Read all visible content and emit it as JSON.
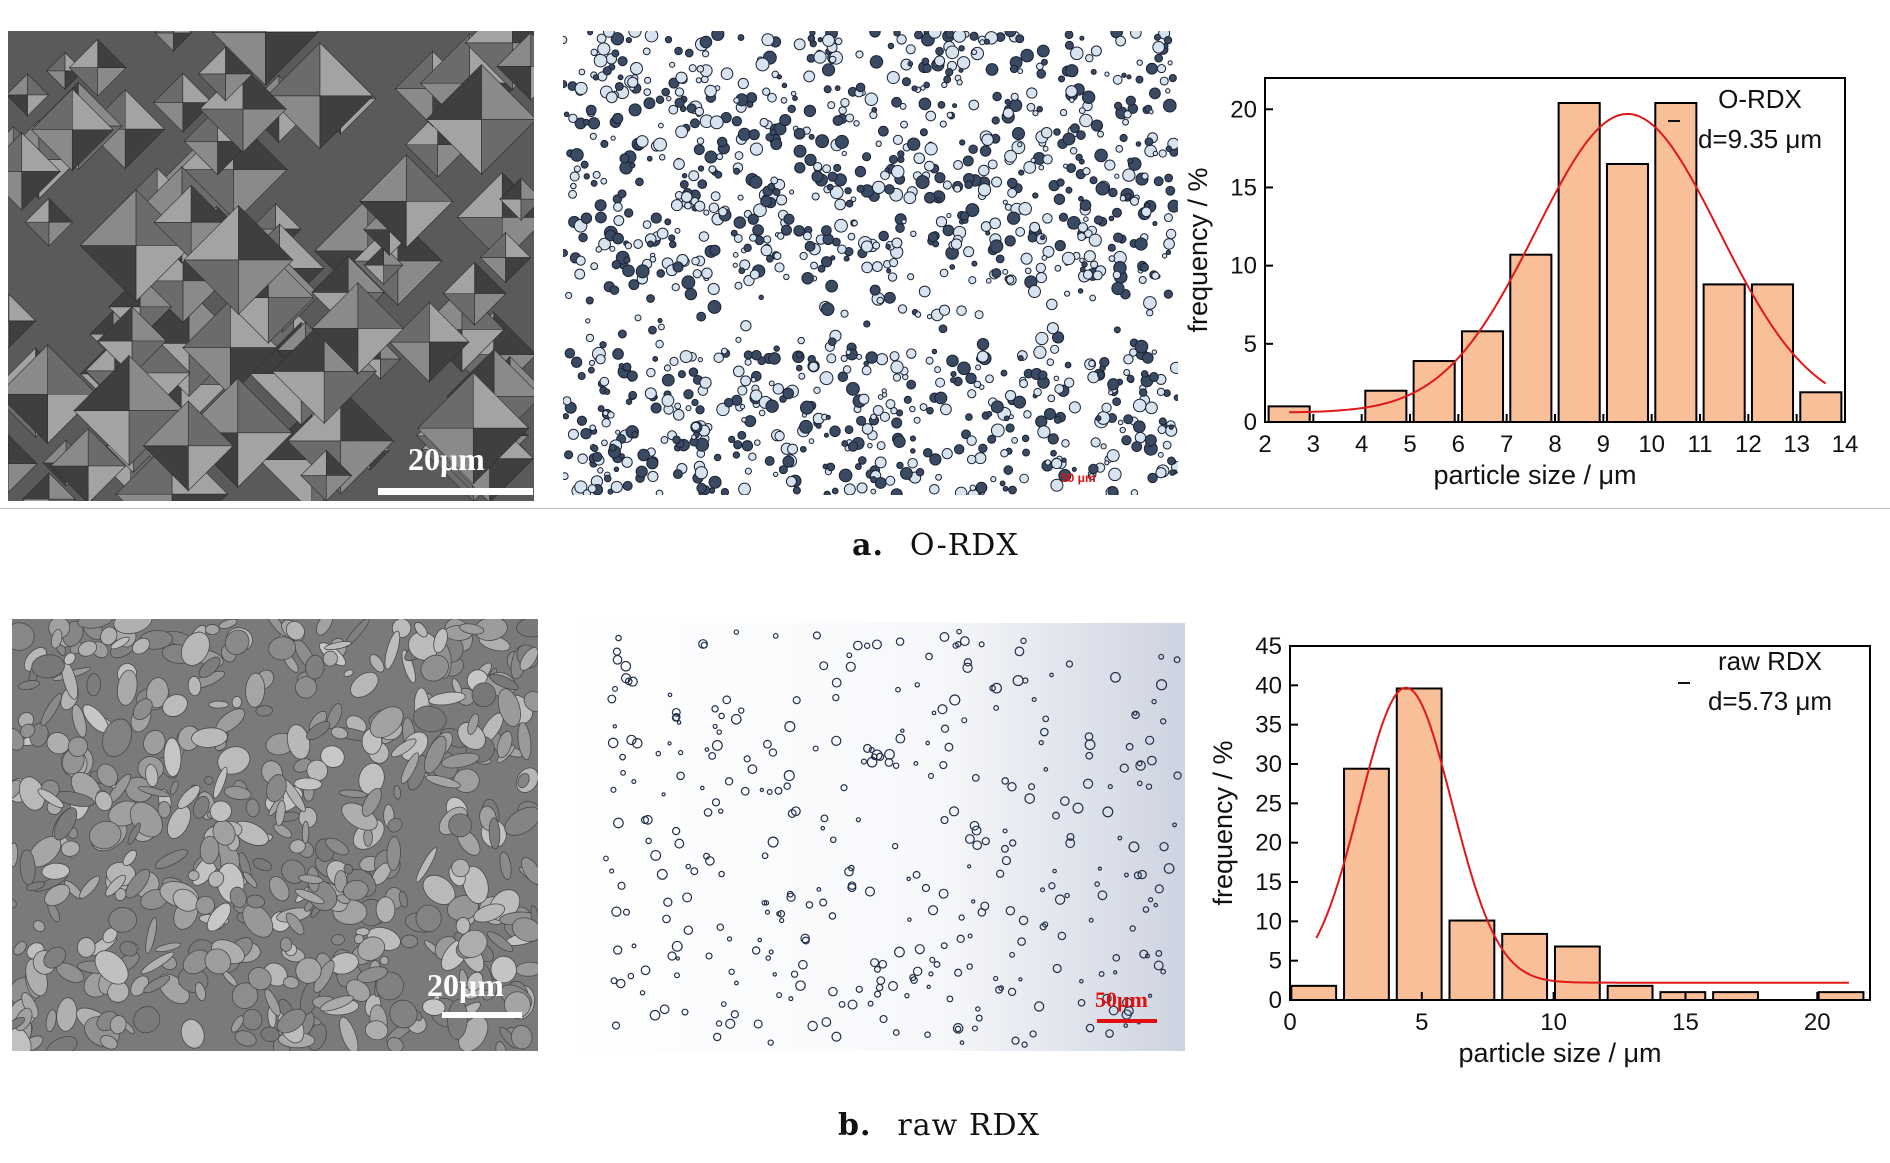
{
  "figure": {
    "row_a": {
      "caption_letter": "a.",
      "caption_text": "O-RDX",
      "sem_scale_label": "20μm",
      "optical_scale_label": "50 μm"
    },
    "row_b": {
      "caption_letter": "b.",
      "caption_text": "raw RDX",
      "sem_scale_label": "20μm",
      "optical_scale_label": "50μm"
    }
  },
  "colors": {
    "bar_fill": "#f9bf98",
    "bar_stroke": "#000000",
    "fit_curve": "#e01818",
    "scale_red": "#e01010"
  },
  "chart_data": [
    {
      "type": "bar",
      "legend_title": "O-RDX",
      "legend_stat": "d=9.35 μm",
      "xlabel": "particle size / μm",
      "ylabel": "frequency / %",
      "xlim": [
        2,
        14
      ],
      "ylim": [
        0,
        22
      ],
      "xticks": [
        2,
        3,
        4,
        5,
        6,
        7,
        8,
        9,
        10,
        11,
        12,
        13,
        14
      ],
      "yticks": [
        0,
        5,
        10,
        15,
        20
      ],
      "bar_width": 0.85,
      "bars": [
        {
          "x": 2.5,
          "y": 1.0
        },
        {
          "x": 4.5,
          "y": 2.0
        },
        {
          "x": 5.5,
          "y": 3.9
        },
        {
          "x": 6.5,
          "y": 5.8
        },
        {
          "x": 7.5,
          "y": 10.7
        },
        {
          "x": 8.5,
          "y": 20.4
        },
        {
          "x": 9.5,
          "y": 16.5
        },
        {
          "x": 10.5,
          "y": 20.4
        },
        {
          "x": 11.5,
          "y": 8.8
        },
        {
          "x": 12.5,
          "y": 8.8
        },
        {
          "x": 13.5,
          "y": 1.9
        }
      ],
      "fit": {
        "y0": 0.6,
        "amplitude": 19.1,
        "center": 9.5,
        "sigma": 1.9,
        "x_range": [
          2.5,
          13.6
        ]
      }
    },
    {
      "type": "bar",
      "legend_title": "raw RDX",
      "legend_stat": "d=5.73 μm",
      "xlabel": "particle size / μm",
      "ylabel": "frequency / %",
      "xlim": [
        0,
        22
      ],
      "ylim": [
        0,
        45
      ],
      "xticks": [
        0,
        5,
        10,
        15,
        20
      ],
      "yticks": [
        0,
        5,
        10,
        15,
        20,
        25,
        30,
        35,
        40,
        45
      ],
      "bar_width": 1.7,
      "bars": [
        {
          "x": 0.9,
          "y": 1.8
        },
        {
          "x": 2.9,
          "y": 29.4
        },
        {
          "x": 4.9,
          "y": 39.6
        },
        {
          "x": 6.9,
          "y": 10.1
        },
        {
          "x": 8.9,
          "y": 8.4
        },
        {
          "x": 10.9,
          "y": 6.8
        },
        {
          "x": 12.9,
          "y": 1.8
        },
        {
          "x": 14.9,
          "y": 1.0
        },
        {
          "x": 16.9,
          "y": 1.0
        },
        {
          "x": 20.9,
          "y": 1.0
        }
      ],
      "fit": {
        "y0": 2.2,
        "amplitude": 37.5,
        "center": 4.4,
        "sigma": 1.75,
        "x_range": [
          1.0,
          21.2
        ]
      }
    }
  ]
}
